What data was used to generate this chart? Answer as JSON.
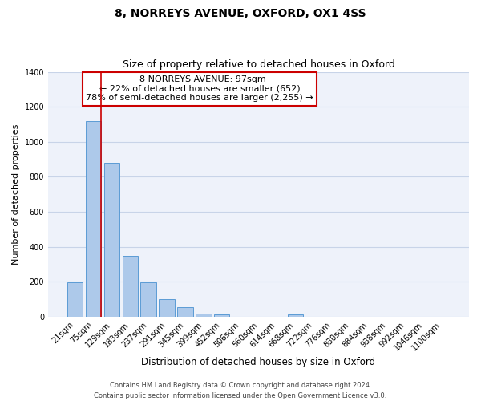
{
  "title": "8, NORREYS AVENUE, OXFORD, OX1 4SS",
  "subtitle": "Size of property relative to detached houses in Oxford",
  "xlabel": "Distribution of detached houses by size in Oxford",
  "ylabel": "Number of detached properties",
  "bar_labels": [
    "21sqm",
    "75sqm",
    "129sqm",
    "183sqm",
    "237sqm",
    "291sqm",
    "345sqm",
    "399sqm",
    "452sqm",
    "506sqm",
    "560sqm",
    "614sqm",
    "668sqm",
    "722sqm",
    "776sqm",
    "830sqm",
    "884sqm",
    "938sqm",
    "992sqm",
    "1046sqm",
    "1100sqm"
  ],
  "bar_values": [
    195,
    1120,
    880,
    350,
    195,
    100,
    55,
    20,
    15,
    0,
    0,
    0,
    15,
    0,
    0,
    0,
    0,
    0,
    0,
    0,
    0
  ],
  "bar_color": "#adc9ea",
  "bar_edge_color": "#5b9bd5",
  "vline_color": "#cc0000",
  "ylim": [
    0,
    1400
  ],
  "yticks": [
    0,
    200,
    400,
    600,
    800,
    1000,
    1200,
    1400
  ],
  "annotation_title": "8 NORREYS AVENUE: 97sqm",
  "annotation_line1": "← 22% of detached houses are smaller (652)",
  "annotation_line2": "78% of semi-detached houses are larger (2,255) →",
  "annotation_box_color": "#ffffff",
  "annotation_box_edge": "#cc0000",
  "footer1": "Contains HM Land Registry data © Crown copyright and database right 2024.",
  "footer2": "Contains public sector information licensed under the Open Government Licence v3.0.",
  "grid_color": "#c8d4e8",
  "background_color": "#eef2fa",
  "title_fontsize": 10,
  "subtitle_fontsize": 9,
  "ylabel_fontsize": 8,
  "xlabel_fontsize": 8.5,
  "tick_fontsize": 7,
  "footer_fontsize": 6,
  "annot_fontsize": 8
}
